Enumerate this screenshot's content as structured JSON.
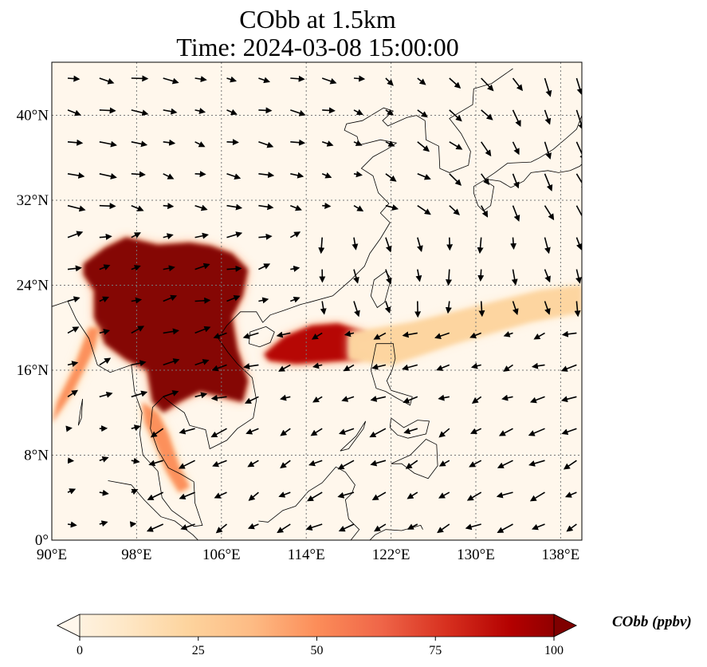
{
  "title_line1": "CObb at 1.5km",
  "title_line2": "Time: 2024-03-08 15:00:00",
  "colors": {
    "cmap": [
      "#fff7ec",
      "#fee8c8",
      "#fdd49e",
      "#fdbb84",
      "#fc8d59",
      "#ef6548",
      "#d7301f",
      "#b30000",
      "#7f0000"
    ],
    "ocean": "#fff7ec",
    "saturated": "#7f0000"
  },
  "map": {
    "lon_range": [
      90,
      140
    ],
    "lat_range": [
      0,
      45
    ],
    "lon_ticks": [
      {
        "value": 90,
        "label": "90°E"
      },
      {
        "value": 98,
        "label": "98°E"
      },
      {
        "value": 106,
        "label": "106°E"
      },
      {
        "value": 114,
        "label": "114°E"
      },
      {
        "value": 122,
        "label": "122°E"
      },
      {
        "value": 130,
        "label": "130°E"
      },
      {
        "value": 138,
        "label": "138°E"
      }
    ],
    "lat_ticks": [
      {
        "value": 0,
        "label": "0°"
      },
      {
        "value": 8,
        "label": "8°N"
      },
      {
        "value": 16,
        "label": "16°N"
      },
      {
        "value": 24,
        "label": "24°N"
      },
      {
        "value": 32,
        "label": "32°N"
      },
      {
        "value": 40,
        "label": "40°N"
      }
    ],
    "gridlines": true,
    "plumes": [
      {
        "name": "indochina-core",
        "value": 100,
        "polygon": [
          [
            93,
            26
          ],
          [
            95,
            27.5
          ],
          [
            97,
            28.5
          ],
          [
            100,
            27.8
          ],
          [
            103,
            28
          ],
          [
            105,
            27.7
          ],
          [
            107,
            27
          ],
          [
            108.5,
            25.5
          ],
          [
            108,
            23
          ],
          [
            107,
            21
          ],
          [
            107.5,
            18
          ],
          [
            108.5,
            15
          ],
          [
            108,
            13
          ],
          [
            106,
            13.5
          ],
          [
            104,
            14
          ],
          [
            102,
            13
          ],
          [
            100.5,
            12
          ],
          [
            99.5,
            13
          ],
          [
            99,
            16
          ],
          [
            97,
            17
          ],
          [
            95,
            18.5
          ],
          [
            94,
            21
          ],
          [
            94,
            23.5
          ],
          [
            93,
            25
          ]
        ]
      },
      {
        "name": "south-china-sea-plume",
        "value": 90,
        "polygon": [
          [
            110,
            17.5
          ],
          [
            112,
            19.2
          ],
          [
            114.5,
            20.2
          ],
          [
            117,
            20.4
          ],
          [
            119.5,
            19.6
          ],
          [
            120.5,
            18.3
          ],
          [
            119,
            17
          ],
          [
            116,
            16.8
          ],
          [
            113,
            16.6
          ],
          [
            110.5,
            16.9
          ]
        ]
      },
      {
        "name": "east-pacific-tail",
        "value": 30,
        "polygon": [
          [
            118,
            19.5
          ],
          [
            124,
            20.5
          ],
          [
            130,
            22
          ],
          [
            136,
            23.5
          ],
          [
            140,
            24
          ],
          [
            140,
            21.5
          ],
          [
            135,
            20.5
          ],
          [
            128,
            18.5
          ],
          [
            122,
            16.5
          ],
          [
            118,
            17
          ]
        ]
      },
      {
        "name": "malay-peninsula",
        "value": 55,
        "polygon": [
          [
            98.5,
            13
          ],
          [
            100,
            12
          ],
          [
            101,
            10
          ],
          [
            102,
            7
          ],
          [
            103,
            5
          ],
          [
            102,
            4.5
          ],
          [
            100.8,
            6.5
          ],
          [
            99.8,
            9
          ],
          [
            98.8,
            11
          ]
        ]
      },
      {
        "name": "bay-of-bengal-arm",
        "value": 45,
        "polygon": [
          [
            90,
            11
          ],
          [
            92,
            14
          ],
          [
            94,
            18
          ],
          [
            94.5,
            20
          ],
          [
            93.5,
            20
          ],
          [
            92,
            16
          ],
          [
            90.5,
            13
          ]
        ]
      }
    ],
    "vector_field": {
      "lon_step": 3,
      "lat_step": 3,
      "reference_note": "wind vectors"
    }
  },
  "colorbar": {
    "min": 0,
    "max": 100,
    "extend": "both",
    "ticks": [
      {
        "value": 0,
        "label": "0"
      },
      {
        "value": 25,
        "label": "25"
      },
      {
        "value": 50,
        "label": "50"
      },
      {
        "value": 75,
        "label": "75"
      },
      {
        "value": 100,
        "label": "100"
      }
    ],
    "label": "CObb (ppbv)"
  }
}
